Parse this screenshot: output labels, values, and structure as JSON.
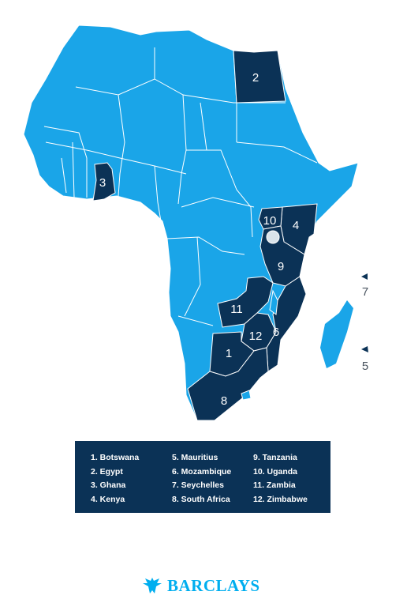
{
  "colors": {
    "africa": "#1aa5e8",
    "highlight": "#0b3256",
    "border": "#ffffff",
    "outside_label": "#4a5560",
    "brand": "#00aeef"
  },
  "map": {
    "markers": [
      "1",
      "2",
      "3",
      "4",
      "5",
      "6",
      "7",
      "8",
      "9",
      "10",
      "11",
      "12"
    ]
  },
  "legend": [
    "1. Botswana",
    "2. Egypt",
    "3. Ghana",
    "4. Kenya",
    "5. Mauritius",
    "6. Mozambique",
    "7. Seychelles",
    "8. South Africa",
    "9. Tanzania",
    "10. Uganda",
    "11. Zambia",
    "12. Zimbabwe"
  ],
  "brand": {
    "name": "BARCLAYS",
    "icon": "eagle-logo"
  }
}
